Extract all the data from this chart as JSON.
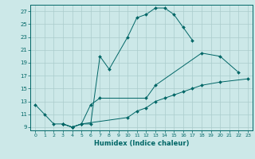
{
  "xlabel": "Humidex (Indice chaleur)",
  "xlim": [
    -0.5,
    23.5
  ],
  "ylim": [
    8.5,
    28.0
  ],
  "xticks": [
    0,
    1,
    2,
    3,
    4,
    5,
    6,
    7,
    8,
    9,
    10,
    11,
    12,
    13,
    14,
    15,
    16,
    17,
    18,
    19,
    20,
    21,
    22,
    23
  ],
  "yticks": [
    9,
    11,
    13,
    15,
    17,
    19,
    21,
    23,
    25,
    27
  ],
  "background_color": "#cce8e8",
  "grid_color": "#aacccc",
  "line_color": "#006666",
  "curves": [
    {
      "x": [
        0,
        1,
        2,
        3,
        4,
        5,
        6,
        7,
        8,
        10,
        11,
        12,
        13,
        14,
        15,
        16,
        17
      ],
      "y": [
        12.5,
        11,
        9.5,
        9.5,
        9,
        9.5,
        9.5,
        20,
        18,
        23,
        26,
        26.5,
        27.5,
        27.5,
        26.5,
        24.5,
        22.5
      ]
    },
    {
      "x": [
        3,
        4,
        5,
        6,
        7,
        12,
        13,
        18,
        20,
        22
      ],
      "y": [
        9.5,
        9,
        9.5,
        12.5,
        13.5,
        13.5,
        15.5,
        20.5,
        20,
        17.5
      ]
    },
    {
      "x": [
        3,
        4,
        5,
        10,
        11,
        12,
        13,
        14,
        15,
        16,
        17,
        18,
        20,
        23
      ],
      "y": [
        9.5,
        9,
        9.5,
        10.5,
        11.5,
        12,
        13,
        13.5,
        14,
        14.5,
        15,
        15.5,
        16,
        16.5
      ]
    }
  ]
}
